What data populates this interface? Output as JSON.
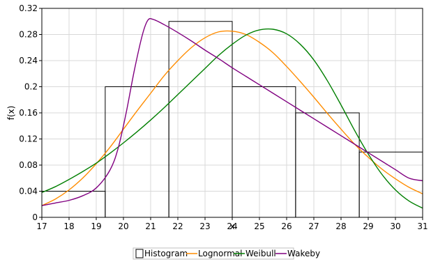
{
  "chart_data": {
    "type": "histogram-with-density-curves",
    "xlabel": "x",
    "ylabel": "f(x)",
    "xlim": [
      17,
      31
    ],
    "ylim": [
      0,
      0.32
    ],
    "x_ticks": [
      "17",
      "18",
      "19",
      "20",
      "21",
      "22",
      "23",
      "24",
      "25",
      "26",
      "27",
      "28",
      "29",
      "30",
      "31"
    ],
    "y_ticks": [
      "0",
      "0.04",
      "0.08",
      "0.12",
      "0.16",
      "0.2",
      "0.24",
      "0.28",
      "0.32"
    ],
    "grid": true,
    "legend_position": "bottom",
    "histogram": {
      "name": "Histogram",
      "bins": [
        {
          "x0": 17.0,
          "x1": 19.33,
          "density": 0.04
        },
        {
          "x0": 19.33,
          "x1": 21.67,
          "density": 0.2
        },
        {
          "x0": 21.67,
          "x1": 24.0,
          "density": 0.3
        },
        {
          "x0": 24.0,
          "x1": 26.33,
          "density": 0.2
        },
        {
          "x0": 26.33,
          "x1": 28.67,
          "density": 0.16
        },
        {
          "x0": 28.67,
          "x1": 31.0,
          "density": 0.1
        }
      ]
    },
    "series": [
      {
        "name": "Lognormal",
        "color": "#FF8C00",
        "points": [
          [
            17,
            0.018
          ],
          [
            17.5,
            0.028
          ],
          [
            18,
            0.042
          ],
          [
            18.5,
            0.06
          ],
          [
            19,
            0.082
          ],
          [
            19.5,
            0.107
          ],
          [
            20,
            0.135
          ],
          [
            20.5,
            0.163
          ],
          [
            21,
            0.19
          ],
          [
            21.5,
            0.217
          ],
          [
            22,
            0.24
          ],
          [
            22.5,
            0.26
          ],
          [
            23,
            0.275
          ],
          [
            23.5,
            0.284
          ],
          [
            24,
            0.285
          ],
          [
            24.5,
            0.28
          ],
          [
            25,
            0.268
          ],
          [
            25.5,
            0.252
          ],
          [
            26,
            0.231
          ],
          [
            26.5,
            0.208
          ],
          [
            27,
            0.184
          ],
          [
            27.5,
            0.159
          ],
          [
            28,
            0.135
          ],
          [
            28.5,
            0.112
          ],
          [
            29,
            0.092
          ],
          [
            29.5,
            0.074
          ],
          [
            30,
            0.059
          ],
          [
            30.5,
            0.046
          ],
          [
            31,
            0.036
          ]
        ]
      },
      {
        "name": "Weibull",
        "color": "#007F00",
        "points": [
          [
            17,
            0.038
          ],
          [
            17.5,
            0.047
          ],
          [
            18,
            0.058
          ],
          [
            18.5,
            0.07
          ],
          [
            19,
            0.083
          ],
          [
            19.5,
            0.098
          ],
          [
            20,
            0.114
          ],
          [
            20.5,
            0.131
          ],
          [
            21,
            0.149
          ],
          [
            21.5,
            0.168
          ],
          [
            22,
            0.188
          ],
          [
            22.5,
            0.208
          ],
          [
            23,
            0.228
          ],
          [
            23.5,
            0.248
          ],
          [
            24,
            0.265
          ],
          [
            24.5,
            0.279
          ],
          [
            25,
            0.287
          ],
          [
            25.5,
            0.288
          ],
          [
            26,
            0.281
          ],
          [
            26.5,
            0.265
          ],
          [
            27,
            0.241
          ],
          [
            27.5,
            0.209
          ],
          [
            28,
            0.172
          ],
          [
            28.5,
            0.133
          ],
          [
            29,
            0.097
          ],
          [
            29.5,
            0.066
          ],
          [
            30,
            0.042
          ],
          [
            30.5,
            0.025
          ],
          [
            31,
            0.014
          ]
        ]
      },
      {
        "name": "Wakeby",
        "color": "#800080",
        "points": [
          [
            17,
            0.018
          ],
          [
            17.5,
            0.022
          ],
          [
            18,
            0.026
          ],
          [
            18.5,
            0.033
          ],
          [
            19,
            0.045
          ],
          [
            19.5,
            0.072
          ],
          [
            19.8,
            0.105
          ],
          [
            20.1,
            0.16
          ],
          [
            20.4,
            0.225
          ],
          [
            20.7,
            0.28
          ],
          [
            20.9,
            0.302
          ],
          [
            21.1,
            0.303
          ],
          [
            21.5,
            0.295
          ],
          [
            22,
            0.283
          ],
          [
            22.5,
            0.27
          ],
          [
            23,
            0.256
          ],
          [
            23.5,
            0.243
          ],
          [
            24,
            0.229
          ],
          [
            24.5,
            0.216
          ],
          [
            25,
            0.203
          ],
          [
            25.5,
            0.19
          ],
          [
            26,
            0.177
          ],
          [
            26.5,
            0.164
          ],
          [
            27,
            0.151
          ],
          [
            27.5,
            0.138
          ],
          [
            28,
            0.125
          ],
          [
            28.5,
            0.112
          ],
          [
            29,
            0.099
          ],
          [
            29.5,
            0.086
          ],
          [
            30,
            0.073
          ],
          [
            30.5,
            0.06
          ],
          [
            31,
            0.056
          ]
        ]
      }
    ],
    "legend": [
      {
        "label": "Histogram",
        "type": "box",
        "color": "#000000"
      },
      {
        "label": "Lognormal",
        "type": "line",
        "color": "#FF8C00"
      },
      {
        "label": "Weibull",
        "type": "line",
        "color": "#007F00"
      },
      {
        "label": "Wakeby",
        "type": "line",
        "color": "#800080"
      }
    ]
  }
}
